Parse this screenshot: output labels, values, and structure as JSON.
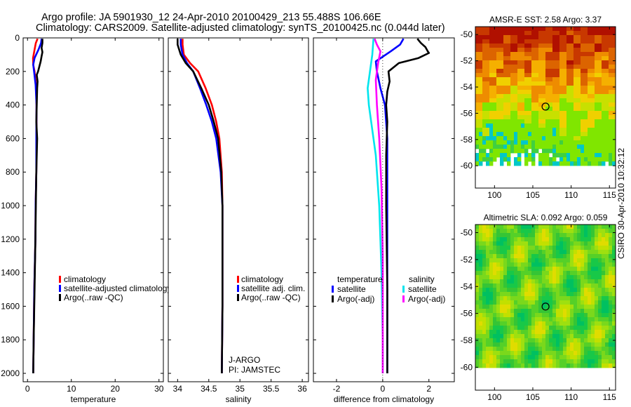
{
  "figure": {
    "title_line1": "Argo profile: JA 5901930_12 24-Apr-2010 20100429_213 55.488S 106.66E",
    "title_line2": "Climatology: CARS2009. Satellite-adjusted climatology: synTS_20100425.nc (0.044d later)",
    "credit": "CSIRO 30-Apr-2010 10:32:12"
  },
  "colors": {
    "climatology": "#ff0000",
    "satellite": "#0000ff",
    "argo": "#000000",
    "salinity_satellite": "#00e5ee",
    "salinity_argo": "#ff00ff",
    "sst_map_hot": "#b01000",
    "sst_map_cool": "#7fe600",
    "sla_map": "#35c535"
  },
  "chart_data": [
    {
      "id": "temperature",
      "type": "line",
      "xlabel": "temperature",
      "ylabel": "",
      "xlim": [
        -1,
        31
      ],
      "ylim": [
        2050,
        0
      ],
      "xticks": [
        0,
        10,
        20,
        30
      ],
      "xtick_labels": [
        "0",
        "10",
        "20",
        "30"
      ],
      "yticks": [
        0,
        200,
        400,
        600,
        800,
        1000,
        1200,
        1400,
        1600,
        1800,
        2000
      ],
      "ytick_labels": [
        "0",
        "200",
        "400",
        "600",
        "800",
        "1000",
        "1200",
        "1400",
        "1600",
        "1800",
        "2000"
      ],
      "legend": [
        "climatology",
        "satellite-adjusted climatology",
        "Argo(..raw -QC)"
      ],
      "legend_position": "lower-right",
      "series": [
        {
          "name": "climatology",
          "color": "#ff0000",
          "x": [
            2.3,
            1.9,
            1.6,
            1.25,
            1.3,
            1.6,
            1.95,
            2.05,
            2.05,
            2.0,
            1.85,
            1.8,
            1.55,
            1.4,
            1.3
          ],
          "y": [
            5,
            30,
            70,
            120,
            160,
            200,
            280,
            400,
            600,
            800,
            1000,
            1200,
            1500,
            1800,
            2000
          ]
        },
        {
          "name": "satellite-adjusted climatology",
          "color": "#0000ff",
          "x": [
            3.2,
            3.1,
            2.5,
            1.6,
            1.3,
            1.5,
            1.85,
            2.05,
            2.0,
            2.0,
            1.85,
            1.8,
            1.55,
            1.4,
            1.3
          ],
          "y": [
            5,
            30,
            70,
            120,
            160,
            200,
            280,
            400,
            600,
            800,
            1000,
            1200,
            1500,
            1800,
            2000
          ]
        },
        {
          "name": "Argo(..raw -QC)",
          "color": "#000000",
          "x": [
            3.4,
            3.4,
            3.2,
            3.4,
            3.2,
            3.0,
            2.4,
            2.1,
            2.3,
            2.2,
            2.1,
            2.0,
            2.2,
            2.0,
            1.9,
            1.8,
            1.6,
            1.4,
            1.3
          ],
          "y": [
            5,
            30,
            60,
            85,
            110,
            140,
            200,
            220,
            260,
            300,
            400,
            500,
            600,
            800,
            1000,
            1200,
            1500,
            1800,
            2000
          ]
        }
      ]
    },
    {
      "id": "salinity",
      "type": "line",
      "xlabel": "salinity",
      "ylabel": "",
      "xlim": [
        33.85,
        36.1
      ],
      "ylim": [
        2050,
        0
      ],
      "xticks": [
        34,
        34.5,
        35,
        35.5,
        36
      ],
      "xtick_labels": [
        "34",
        "34.5",
        "35",
        "35.5",
        "36"
      ],
      "legend": [
        "climatology",
        "satellite adj. clim.",
        "Argo(..raw -QC)"
      ],
      "legend_position": "lower-right",
      "annotations": [
        "J-ARGO",
        "PI: JAMSTEC"
      ],
      "series": [
        {
          "name": "climatology",
          "color": "#ff0000",
          "x": [
            34.08,
            34.08,
            34.1,
            34.2,
            34.33,
            34.45,
            34.55,
            34.62,
            34.67,
            34.71,
            34.72,
            34.72,
            34.72,
            34.71
          ],
          "y": [
            5,
            40,
            100,
            150,
            200,
            300,
            400,
            500,
            600,
            800,
            1000,
            1200,
            1600,
            2000
          ]
        },
        {
          "name": "satellite adj. clim.",
          "color": "#0000ff",
          "x": [
            34.05,
            34.05,
            34.08,
            34.15,
            34.25,
            34.36,
            34.46,
            34.55,
            34.62,
            34.69,
            34.72,
            34.72,
            34.72,
            34.71
          ],
          "y": [
            5,
            40,
            100,
            150,
            200,
            300,
            400,
            500,
            600,
            800,
            1000,
            1200,
            1600,
            2000
          ]
        },
        {
          "name": "Argo(..raw -QC)",
          "color": "#000000",
          "x": [
            34.0,
            34.0,
            34.05,
            34.13,
            34.25,
            34.38,
            34.5,
            34.58,
            34.65,
            34.7,
            34.72,
            34.72,
            34.72,
            34.71
          ],
          "y": [
            5,
            40,
            100,
            150,
            200,
            300,
            400,
            500,
            600,
            800,
            1000,
            1200,
            1600,
            2000
          ]
        }
      ]
    },
    {
      "id": "difference",
      "type": "line",
      "xlabel": "difference from climatology",
      "ylabel": "",
      "xlim": [
        -3,
        3.1
      ],
      "ylim": [
        2050,
        0
      ],
      "xticks": [
        -2,
        0,
        2
      ],
      "xtick_labels": [
        "-2",
        "0",
        "2"
      ],
      "legend_groups": [
        {
          "title": "temperature",
          "items": [
            "satellite",
            "Argo(-adj)"
          ]
        },
        {
          "title": "salinity",
          "items": [
            "satellite",
            "Argo(-adj)"
          ]
        }
      ],
      "legend_position": "lower-center",
      "series": [
        {
          "name": "temperature satellite",
          "color": "#0000ff",
          "x": [
            0.9,
            0.75,
            0.35,
            -0.3,
            -0.25,
            -0.1,
            0.1,
            0.2,
            0.2,
            0.2,
            0.2,
            0.2
          ],
          "y": [
            5,
            40,
            80,
            140,
            200,
            300,
            400,
            600,
            1000,
            1400,
            1800,
            2000
          ]
        },
        {
          "name": "temperature Argo(-adj)",
          "color": "#000000",
          "x": [
            1.5,
            1.65,
            1.85,
            1.95,
            2.0,
            1.55,
            0.7,
            0.25,
            0.3,
            0.2,
            0.15,
            0.2,
            0.15,
            0.15,
            0.2,
            0.2
          ],
          "y": [
            5,
            30,
            55,
            80,
            90,
            120,
            150,
            200,
            260,
            320,
            400,
            500,
            700,
            1000,
            1500,
            2000
          ]
        },
        {
          "name": "salinity satellite",
          "color": "#00e5ee",
          "x": [
            -0.4,
            -0.45,
            -0.55,
            -0.65,
            -0.6,
            -0.5,
            -0.3,
            -0.15,
            -0.05,
            0.0,
            0.0
          ],
          "y": [
            5,
            100,
            200,
            300,
            400,
            500,
            700,
            1000,
            1400,
            1800,
            2000
          ]
        },
        {
          "name": "salinity Argo(-adj)",
          "color": "#ff00ff",
          "x": [
            -0.35,
            -0.25,
            -0.1,
            -0.2,
            -0.3,
            -0.25,
            -0.15,
            -0.05,
            0.0,
            0.0
          ],
          "y": [
            5,
            40,
            80,
            150,
            250,
            400,
            600,
            900,
            1300,
            2000
          ]
        }
      ]
    },
    {
      "id": "sst_map",
      "type": "heatmap",
      "title": "AMSR-E SST: 2.58 Argo: 3.37",
      "xlim": [
        97.5,
        115.8
      ],
      "ylim": [
        -61.7,
        -49.4
      ],
      "xticks": [
        100,
        105,
        110,
        115
      ],
      "xtick_labels": [
        "100",
        "105",
        "110",
        "115"
      ],
      "yticks": [
        -50,
        -52,
        -54,
        -56,
        -58,
        -60
      ],
      "ytick_labels": [
        "-50",
        "-52",
        "-54",
        "-56",
        "-58",
        "-60"
      ],
      "marker": {
        "lon": 106.66,
        "lat": -55.49
      }
    },
    {
      "id": "sla_map",
      "type": "heatmap",
      "title": "Altimetric SLA: 0.092 Argo: 0.059",
      "xlim": [
        97.5,
        115.8
      ],
      "ylim": [
        -61.7,
        -49.4
      ],
      "xticks": [
        100,
        105,
        110,
        115
      ],
      "xtick_labels": [
        "100",
        "105",
        "110",
        "115"
      ],
      "yticks": [
        -50,
        -52,
        -54,
        -56,
        -58,
        -60
      ],
      "ytick_labels": [
        "-50",
        "-52",
        "-54",
        "-56",
        "-58",
        "-60"
      ],
      "marker": {
        "lon": 106.66,
        "lat": -55.49
      }
    }
  ]
}
